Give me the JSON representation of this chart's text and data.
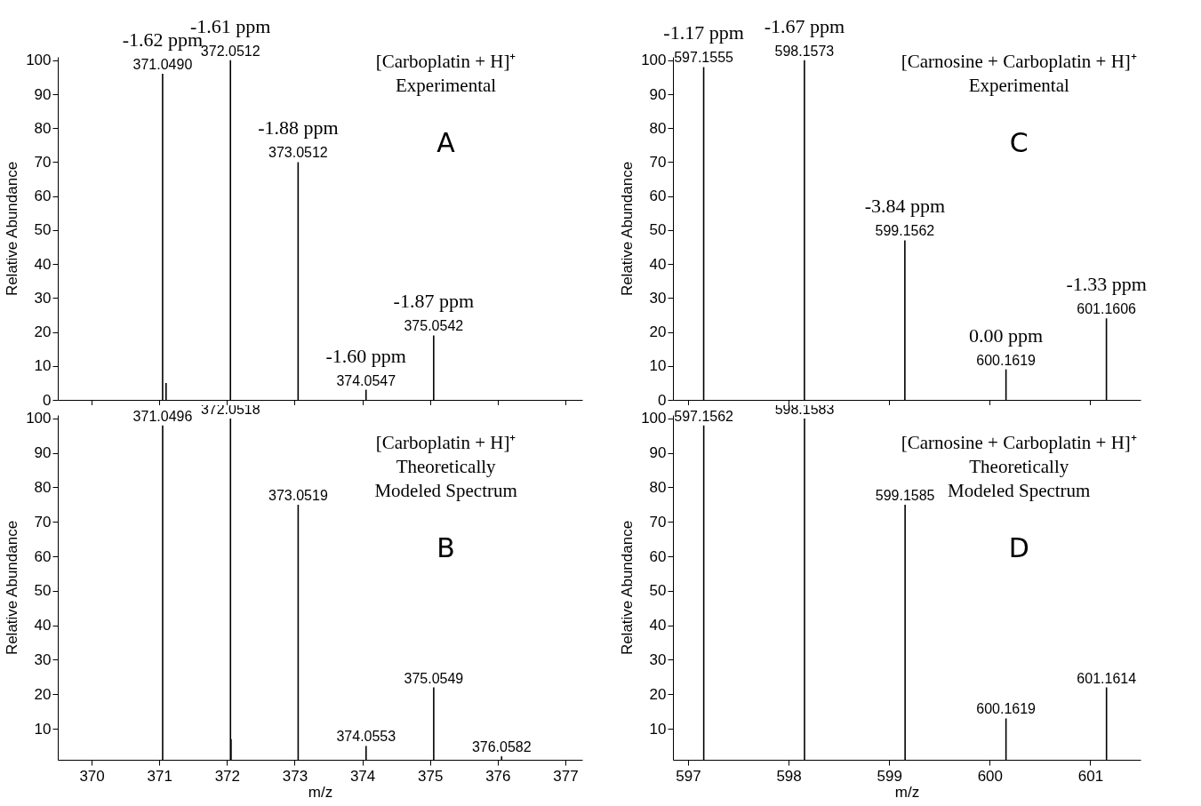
{
  "chart_data": [
    {
      "type": "bar",
      "title": "[Carboplatin + H]⁺",
      "subtitle": "Experimental",
      "ylabel": "Relative Abundance",
      "tick_labels": "y",
      "color": "#000000",
      "xlim": [
        369.5,
        377.25
      ],
      "xticks": [
        370,
        371,
        372,
        373,
        374,
        375,
        376,
        377
      ],
      "ylim": [
        0,
        101
      ],
      "yticks": [
        0,
        10,
        20,
        30,
        40,
        50,
        60,
        70,
        80,
        90,
        100
      ],
      "x": [
        371.049,
        371.1,
        372.0512,
        373.0512,
        374.0547,
        375.0542
      ],
      "values": [
        96,
        5,
        100,
        70,
        3,
        19
      ],
      "annotations": [
        "A",
        {
          "text": "371.0490",
          "x": 371.049,
          "y": 96
        },
        {
          "text": "-1.62 ppm",
          "x": 371.049,
          "y": 96
        },
        {
          "text": "372.0512",
          "x": 372.0512,
          "y": 100
        },
        {
          "text": "-1.61 ppm",
          "x": 372.0512,
          "y": 100
        },
        {
          "text": "373.0512",
          "x": 373.0512,
          "y": 70
        },
        {
          "text": "-1.88 ppm",
          "x": 373.0512,
          "y": 70
        },
        {
          "text": "374.0547",
          "x": 374.0547,
          "y": 3
        },
        {
          "text": "-1.60 ppm",
          "x": 374.0547,
          "y": 3
        },
        {
          "text": "375.0542",
          "x": 375.0542,
          "y": 19
        },
        {
          "text": "-1.87 ppm",
          "x": 375.0542,
          "y": 19
        }
      ]
    },
    {
      "type": "bar",
      "title": "[Carboplatin + H]⁺",
      "subtitle": "Theoretically\nModeled Spectrum",
      "ylabel": "Relative Abundance",
      "xlabel": "m/z",
      "color": "#000000",
      "xlim": [
        369.5,
        377.25
      ],
      "xticks": [
        370,
        371,
        372,
        373,
        374,
        375,
        376,
        377
      ],
      "ylim": [
        1,
        101
      ],
      "yticks": [
        10,
        20,
        30,
        40,
        50,
        60,
        70,
        80,
        90,
        100
      ],
      "x": [
        371.0496,
        372.0518,
        372.06,
        373.0519,
        374.0553,
        375.0549,
        376.0582
      ],
      "values": [
        98,
        100,
        7,
        75,
        5,
        22,
        2
      ],
      "annotations": [
        "B",
        {
          "text": "371.0496",
          "x": 371.0496,
          "y": 98
        },
        {
          "text": "372.0518",
          "x": 372.0518,
          "y": 100
        },
        {
          "text": "373.0519",
          "x": 373.0519,
          "y": 75
        },
        {
          "text": "374.0553",
          "x": 374.0553,
          "y": 5
        },
        {
          "text": "375.0549",
          "x": 375.0549,
          "y": 22
        },
        {
          "text": "376.0582",
          "x": 376.0582,
          "y": 2
        }
      ]
    },
    {
      "type": "bar",
      "title": "[Carnosine + Carboplatin + H]⁺",
      "subtitle": "Experimental",
      "ylabel": "Relative Abundance",
      "tick_labels": "y",
      "color": "#000000",
      "xlim": [
        596.85,
        601.5
      ],
      "xticks": [
        597,
        598,
        599,
        600,
        601
      ],
      "ylim": [
        0,
        101
      ],
      "yticks": [
        0,
        10,
        20,
        30,
        40,
        50,
        60,
        70,
        80,
        90,
        100
      ],
      "x": [
        597.1555,
        598.1573,
        599.1562,
        600.1619,
        601.1606
      ],
      "values": [
        98,
        100,
        47,
        9,
        24
      ],
      "annotations": [
        "C",
        {
          "text": "597.1555",
          "x": 597.1555,
          "y": 98
        },
        {
          "text": "-1.17 ppm",
          "x": 597.1555,
          "y": 98
        },
        {
          "text": "598.1573",
          "x": 598.1573,
          "y": 100
        },
        {
          "text": "-1.67 ppm",
          "x": 598.1573,
          "y": 100
        },
        {
          "text": "599.1562",
          "x": 599.1562,
          "y": 47
        },
        {
          "text": "-3.84 ppm",
          "x": 599.1562,
          "y": 47
        },
        {
          "text": "600.1619",
          "x": 600.1619,
          "y": 9
        },
        {
          "text": "0.00 ppm",
          "x": 600.1619,
          "y": 9
        },
        {
          "text": "601.1606",
          "x": 601.1606,
          "y": 24
        },
        {
          "text": "-1.33 ppm",
          "x": 601.1606,
          "y": 24
        }
      ]
    },
    {
      "type": "bar",
      "title": "[Carnosine + Carboplatin + H]⁺",
      "subtitle": "Theoretically\nModeled Spectrum",
      "ylabel": "Relative Abundance",
      "xlabel": "m/z",
      "color": "#000000",
      "xlim": [
        596.85,
        601.5
      ],
      "xticks": [
        597,
        598,
        599,
        600,
        601
      ],
      "ylim": [
        1,
        101
      ],
      "yticks": [
        10,
        20,
        30,
        40,
        50,
        60,
        70,
        80,
        90,
        100
      ],
      "x": [
        597.1562,
        598.1583,
        599.1585,
        600.1619,
        601.1614
      ],
      "values": [
        98,
        100,
        75,
        13,
        22
      ],
      "annotations": [
        "D",
        {
          "text": "597.1562",
          "x": 597.1562,
          "y": 98
        },
        {
          "text": "598.1583",
          "x": 598.1583,
          "y": 100
        },
        {
          "text": "599.1585",
          "x": 599.1585,
          "y": 75
        },
        {
          "text": "600.1619",
          "x": 600.1619,
          "y": 13
        },
        {
          "text": "601.1614",
          "x": 601.1614,
          "y": 22
        }
      ]
    }
  ]
}
